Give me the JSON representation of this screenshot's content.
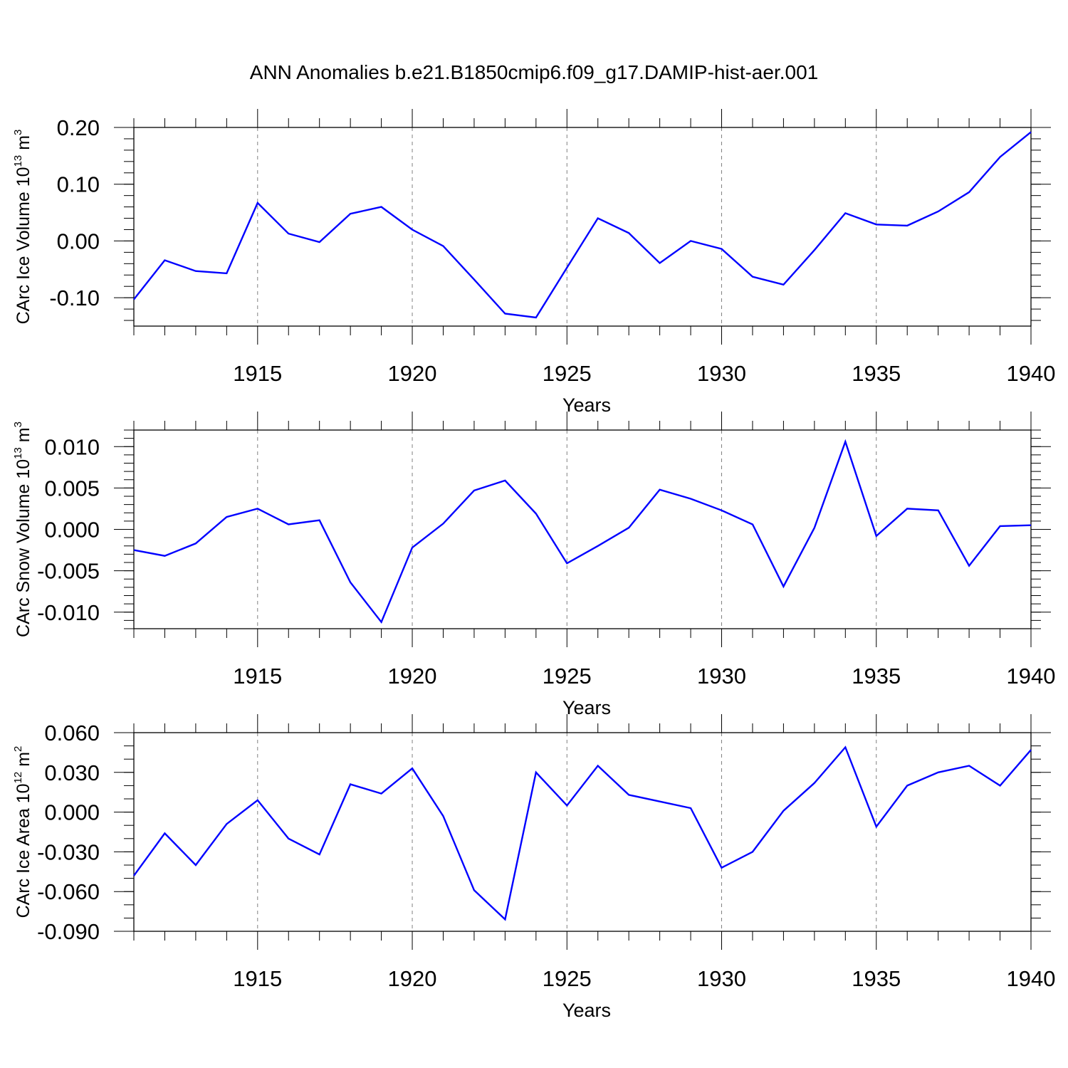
{
  "colors": {
    "line": "#0000ff",
    "axis": "#000000",
    "grid": "#808080",
    "background": "#ffffff"
  },
  "chart_data": {
    "type": "line",
    "title": "ANN Anomalies b.e21.B1850cmip6.f09_g17.DAMIP-hist-aer.001",
    "x": [
      1911,
      1912,
      1913,
      1914,
      1915,
      1916,
      1917,
      1918,
      1919,
      1920,
      1921,
      1922,
      1923,
      1924,
      1925,
      1926,
      1927,
      1928,
      1929,
      1930,
      1931,
      1932,
      1933,
      1934,
      1935,
      1936,
      1937,
      1938,
      1939,
      1940
    ],
    "xlim": [
      1911,
      1940
    ],
    "xticks": [
      1915,
      1920,
      1925,
      1930,
      1935,
      1940
    ],
    "xlabel": "Years",
    "grid": "vertical dashed lines at labeled year ticks",
    "panels": [
      {
        "ylabel": "CArc Ice Volume 10",
        "ylabel_exp": "13",
        "ylabel_unit": " m",
        "ylabel_unit_exp": "3",
        "ylim": [
          -0.15,
          0.2
        ],
        "yticks": [
          -0.1,
          0.0,
          0.1,
          0.2
        ],
        "ytick_labels": [
          "-0.10",
          "0.00",
          "0.10",
          "0.20"
        ],
        "ytick_minor": 0.02,
        "values": [
          -0.103,
          -0.034,
          -0.053,
          -0.057,
          0.067,
          0.013,
          -0.002,
          0.048,
          0.06,
          0.02,
          -0.009,
          -0.068,
          -0.128,
          -0.135,
          -0.047,
          0.04,
          0.014,
          -0.039,
          0.0,
          -0.014,
          -0.063,
          -0.077,
          -0.016,
          0.049,
          0.029,
          0.027,
          0.052,
          0.086,
          0.148,
          0.192
        ]
      },
      {
        "ylabel": "CArc Snow Volume 10",
        "ylabel_exp": "13",
        "ylabel_unit": " m",
        "ylabel_unit_exp": "3",
        "ylim": [
          -0.012,
          0.012
        ],
        "yticks": [
          -0.01,
          -0.005,
          0.0,
          0.005,
          0.01
        ],
        "ytick_labels": [
          "-0.010",
          "-0.005",
          "0.000",
          "0.005",
          "0.010"
        ],
        "ytick_minor": 0.001,
        "values": [
          -0.0025,
          -0.0032,
          -0.0017,
          0.0015,
          0.0025,
          0.0006,
          0.0011,
          -0.0064,
          -0.0112,
          -0.0022,
          0.0007,
          0.0047,
          0.0059,
          0.0019,
          -0.0041,
          -0.002,
          0.0002,
          0.0048,
          0.0037,
          0.0023,
          0.0006,
          -0.0069,
          0.0002,
          0.0106,
          -0.0008,
          0.0025,
          0.0023,
          -0.0044,
          0.0004,
          0.0005
        ]
      },
      {
        "ylabel": "CArc Ice Area 10",
        "ylabel_exp": "12",
        "ylabel_unit": " m",
        "ylabel_unit_exp": "2",
        "ylim": [
          -0.09,
          0.06
        ],
        "yticks": [
          -0.09,
          -0.06,
          -0.03,
          0.0,
          0.03,
          0.06
        ],
        "ytick_labels": [
          "-0.090",
          "-0.060",
          "-0.030",
          "0.000",
          "0.030",
          "0.060"
        ],
        "ytick_minor": 0.01,
        "values": [
          -0.048,
          -0.016,
          -0.04,
          -0.009,
          0.009,
          -0.02,
          -0.032,
          0.021,
          0.014,
          0.033,
          -0.003,
          -0.059,
          -0.081,
          0.03,
          0.005,
          0.035,
          0.013,
          0.008,
          0.003,
          -0.042,
          -0.03,
          0.001,
          0.022,
          0.049,
          -0.011,
          0.02,
          0.03,
          0.035,
          0.02,
          0.047
        ]
      }
    ]
  }
}
